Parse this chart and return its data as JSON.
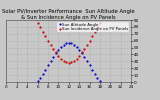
{
  "title": "Solar PV/Inverter Performance  Sun Altitude Angle & Sun Incidence Angle on PV Panels",
  "blue_label": "Sun Altitude Angle",
  "red_label": "Sun Incidence Angle on PV Panels",
  "blue_color": "#0000cc",
  "red_color": "#cc0000",
  "background_color": "#c8c8c8",
  "plot_bg_color": "#c8c8c8",
  "x_start": 0,
  "x_end": 24,
  "y_min": 0,
  "y_max": 90,
  "blue_x": [
    6.0,
    6.5,
    7.0,
    7.5,
    8.0,
    8.5,
    9.0,
    9.5,
    10.0,
    10.5,
    11.0,
    11.5,
    12.0,
    12.5,
    13.0,
    13.5,
    14.0,
    14.5,
    15.0,
    15.5,
    16.0,
    16.5,
    17.0,
    17.5,
    18.0
  ],
  "blue_y": [
    2,
    6,
    12,
    18,
    25,
    31,
    37,
    42,
    47,
    51,
    54,
    56,
    57,
    56,
    54,
    51,
    47,
    42,
    37,
    31,
    25,
    18,
    12,
    6,
    2
  ],
  "red_x": [
    6.0,
    6.5,
    7.0,
    7.5,
    8.0,
    8.5,
    9.0,
    9.5,
    10.0,
    10.5,
    11.0,
    11.5,
    12.0,
    12.5,
    13.0,
    13.5,
    14.0,
    14.5,
    15.0,
    15.5,
    16.0,
    16.5,
    17.0,
    17.5,
    18.0
  ],
  "red_y": [
    85,
    80,
    73,
    67,
    60,
    54,
    48,
    43,
    38,
    34,
    31,
    29,
    28,
    29,
    31,
    34,
    38,
    43,
    48,
    54,
    60,
    67,
    73,
    80,
    85
  ],
  "xticks": [
    0,
    2,
    4,
    6,
    8,
    10,
    12,
    14,
    16,
    18,
    20,
    22,
    24
  ],
  "yticks": [
    0,
    10,
    20,
    30,
    40,
    50,
    60,
    70,
    80,
    90
  ],
  "title_fontsize": 3.8,
  "tick_fontsize": 3.0,
  "legend_fontsize": 2.8,
  "marker_size": 1.2
}
